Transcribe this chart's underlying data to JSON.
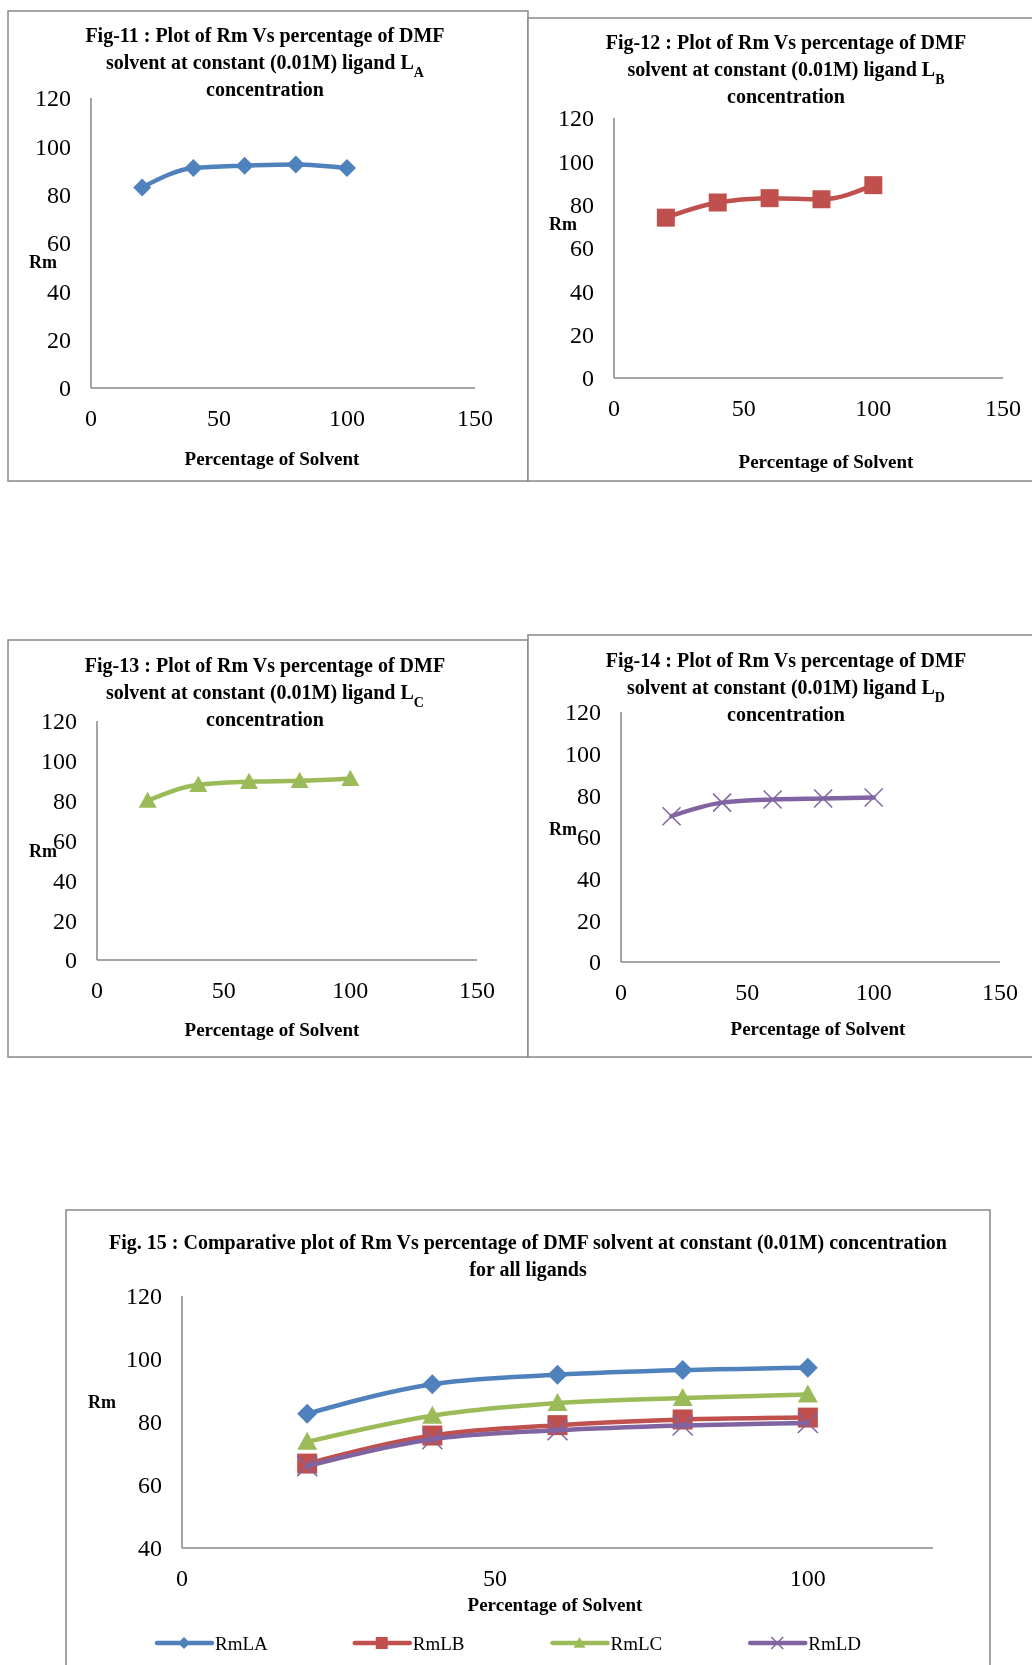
{
  "chart_data": [
    {
      "type": "line",
      "title": "Fig-11 : Plot of Rm Vs percentage of DMF solvent at constant (0.01M) ligand  L$_{A}$ concentration",
      "xlabel": "Percentage of Solvent",
      "ylabel": "Rm",
      "x": [
        20,
        40,
        60,
        80,
        100
      ],
      "xlim": [
        0,
        150
      ],
      "xticks": [
        0,
        50,
        100,
        150
      ],
      "ylim": [
        0,
        120
      ],
      "yticks": [
        0,
        20,
        40,
        60,
        80,
        100,
        120
      ],
      "marker": "diamond",
      "series": [
        {
          "color": "#4f81bd",
          "values": [
            83,
            91,
            92,
            92.5,
            91
          ]
        }
      ]
    },
    {
      "type": "line",
      "title": "Fig-12 : Plot of Rm Vs percentage of DMF solvent at constant (0.01M) ligand  L$_{B}$ concentration",
      "xlabel": "Percentage of Solvent",
      "ylabel": "Rm",
      "x": [
        20,
        40,
        60,
        80,
        100
      ],
      "xlim": [
        0,
        150
      ],
      "xticks": [
        0,
        50,
        100,
        150
      ],
      "ylim": [
        0,
        120
      ],
      "yticks": [
        0,
        20,
        40,
        60,
        80,
        100,
        120
      ],
      "marker": "square",
      "series": [
        {
          "color": "#c0504d",
          "values": [
            74,
            81,
            83,
            82.5,
            89
          ]
        }
      ]
    },
    {
      "type": "line",
      "title": "Fig-13 : Plot of Rm Vs percentage of DMF solvent at constant (0.01M) ligand  L$_{C}$ concentration",
      "xlabel": "Percentage of Solvent",
      "ylabel": "Rm",
      "x": [
        20,
        40,
        60,
        80,
        100
      ],
      "xlim": [
        0,
        150
      ],
      "xticks": [
        0,
        50,
        100,
        150
      ],
      "ylim": [
        0,
        120
      ],
      "yticks": [
        0,
        20,
        40,
        60,
        80,
        100,
        120
      ],
      "marker": "triangle",
      "series": [
        {
          "color": "#9bbb59",
          "values": [
            80,
            88,
            89.5,
            90,
            91
          ]
        }
      ]
    },
    {
      "type": "line",
      "title": "Fig-14 : Plot of Rm Vs percentage of DMF solvent at constant (0.01M) ligand  L$_{D}$ concentration",
      "xlabel": "Percentage of Solvent",
      "ylabel": "Rm",
      "x": [
        20,
        40,
        60,
        80,
        100
      ],
      "xlim": [
        0,
        150
      ],
      "xticks": [
        0,
        50,
        100,
        150
      ],
      "ylim": [
        0,
        120
      ],
      "yticks": [
        0,
        20,
        40,
        60,
        80,
        100,
        120
      ],
      "marker": "cross",
      "series": [
        {
          "color": "#8064a2",
          "values": [
            70,
            76.5,
            78,
            78.5,
            79
          ]
        }
      ]
    },
    {
      "type": "line",
      "title": "Fig. 15 : Comparative plot of Rm Vs percentage of DMF solvent at constant (0.01M) concentration for all ligands",
      "xlabel": "Percentage of Solvent",
      "ylabel": "Rm",
      "x": [
        20,
        40,
        60,
        80,
        100
      ],
      "xlim": [
        0,
        120
      ],
      "xticks": [
        0,
        50,
        100
      ],
      "ylim": [
        40,
        120
      ],
      "yticks": [
        40,
        60,
        80,
        100,
        120
      ],
      "legend": "bottom",
      "series": [
        {
          "name": "RmLA",
          "color": "#4f81bd",
          "marker": "diamond",
          "values": [
            82.6,
            92,
            95,
            96.5,
            97.2
          ]
        },
        {
          "name": "RmLB",
          "color": "#c0504d",
          "marker": "square",
          "values": [
            66.8,
            75.7,
            79,
            80.8,
            81.4
          ]
        },
        {
          "name": "RmLC",
          "color": "#9bbb59",
          "marker": "triangle",
          "values": [
            73.7,
            82,
            86,
            87.6,
            88.7
          ]
        },
        {
          "name": "RmLD",
          "color": "#8064a2",
          "marker": "cross",
          "values": [
            66,
            74.5,
            77.4,
            78.9,
            79.7
          ]
        }
      ]
    }
  ]
}
